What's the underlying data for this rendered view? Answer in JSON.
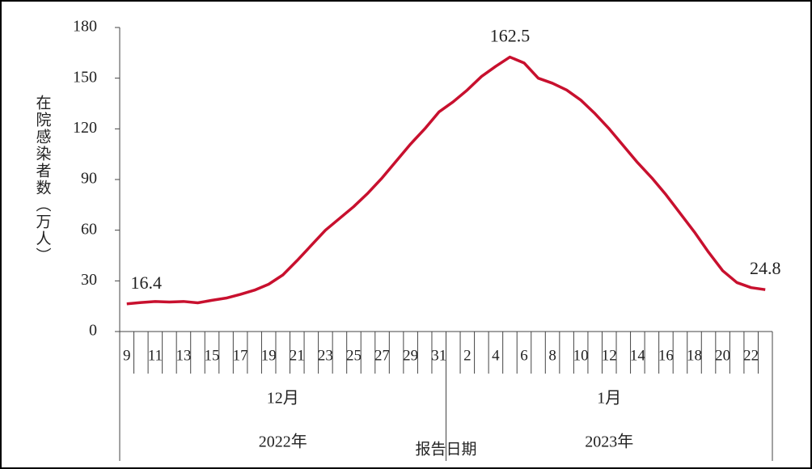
{
  "chart_data": {
    "type": "line",
    "y_label": "在院感染者数（万人）",
    "x_label": "报告日期",
    "color": "#c8102e",
    "groups": [
      {
        "label": "12月",
        "year": "2022年",
        "categories": [
          "9",
          null,
          "11",
          null,
          "13",
          null,
          "15",
          null,
          "17",
          null,
          "19",
          null,
          "21",
          null,
          "23",
          null,
          "25",
          null,
          "27",
          null,
          "29",
          null,
          "31"
        ]
      },
      {
        "label": "1月",
        "year": "2023年",
        "categories": [
          null,
          "2",
          null,
          "4",
          null,
          "6",
          null,
          "8",
          null,
          "10",
          null,
          "12",
          null,
          "14",
          null,
          "16",
          null,
          "18",
          null,
          "20",
          null,
          "22",
          null
        ]
      }
    ],
    "values": [
      16.4,
      17.2,
      17.8,
      17.5,
      17.8,
      17.0,
      18.5,
      19.8,
      22,
      24.5,
      28,
      33.5,
      42,
      51,
      60,
      67,
      74,
      82,
      91,
      101,
      111,
      120,
      130,
      136,
      143,
      151,
      157,
      162.5,
      159,
      150,
      147,
      143,
      137,
      129,
      120,
      110,
      100,
      91,
      81,
      70,
      59,
      47,
      36,
      29,
      26,
      24.8
    ],
    "value_labels": [
      "16.4",
      null,
      null,
      null,
      null,
      null,
      null,
      null,
      null,
      null,
      null,
      null,
      null,
      null,
      null,
      null,
      null,
      null,
      null,
      null,
      null,
      null,
      null,
      null,
      null,
      null,
      null,
      "162.5",
      null,
      null,
      null,
      null,
      null,
      null,
      null,
      null,
      null,
      null,
      null,
      null,
      null,
      null,
      null,
      null,
      null,
      "24.8"
    ],
    "ylim": [
      0,
      180
    ],
    "yticks": [
      0,
      30,
      60,
      90,
      120,
      150,
      180
    ]
  }
}
